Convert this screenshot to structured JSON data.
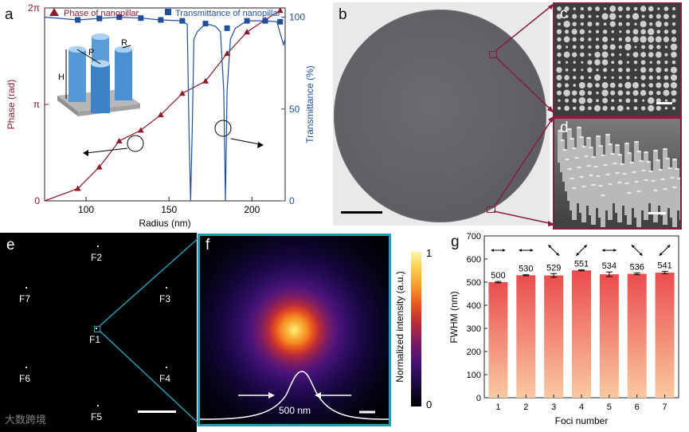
{
  "figure": {
    "panel_letters": {
      "a": "a",
      "b": "b",
      "c": "c",
      "d": "d",
      "e": "e",
      "f": "f",
      "g": "g"
    },
    "colors": {
      "phase": "#8b1a2b",
      "trans": "#1f4e9c",
      "panel_border": "#8b1a3f",
      "zoom_teal": "#2a9bb5"
    },
    "watermark": "大数跨境"
  },
  "chart_data": [
    {
      "id": "a",
      "type": "line",
      "title": "",
      "xlabel": "Radius (nm)",
      "ylabel_left": "Phase (rad)",
      "ylabel_right": "Transmittance (%)",
      "xlim": [
        75,
        220
      ],
      "xticks": [
        100,
        150,
        200
      ],
      "yticks_left": [
        "0",
        "π",
        "2π"
      ],
      "ylim_left": [
        0,
        6.2832
      ],
      "ylim_right": [
        0,
        105
      ],
      "yticks_right": [
        0,
        50,
        100
      ],
      "legend": [
        "Phase of nanopillar",
        "Transmittance of nanopillar"
      ],
      "inset_labels": {
        "P": "P",
        "R": "R",
        "H": "H"
      },
      "series": [
        {
          "name": "Phase of nanopillar",
          "markers_x": [
            95,
            108,
            120,
            133,
            145,
            158,
            172,
            185,
            197,
            208,
            217
          ],
          "markers_y": [
            0.4,
            1.1,
            1.95,
            2.3,
            2.8,
            3.5,
            3.9,
            4.8,
            5.5,
            5.9,
            6.2
          ]
        },
        {
          "name": "Transmittance of nanopillar",
          "markers_x": [
            95,
            108,
            120,
            133,
            145,
            158,
            172,
            185,
            197,
            208,
            217
          ],
          "markers_y": [
            98.5,
            99.3,
            100,
            99.5,
            98.5,
            98,
            96.5,
            94,
            98,
            98,
            97.5
          ]
        }
      ]
    },
    {
      "id": "g",
      "type": "bar",
      "title": "",
      "xlabel": "Foci number",
      "ylabel": "FWHM (nm)",
      "categories": [
        "1",
        "2",
        "3",
        "4",
        "5",
        "6",
        "7"
      ],
      "values": [
        500,
        530,
        529,
        551,
        534,
        536,
        541
      ],
      "errors": [
        3,
        2,
        8,
        2,
        10,
        4,
        5
      ],
      "ylim": [
        0,
        700
      ],
      "yticks": [
        0,
        100,
        200,
        300,
        400,
        500,
        600,
        700
      ]
    }
  ],
  "panel_e": {
    "foci": [
      "F1",
      "F2",
      "F3",
      "F4",
      "F5",
      "F6",
      "F7"
    ]
  },
  "panel_f": {
    "width_label": "500 nm",
    "colorbar_label": "Normalized intensity (a.u.)",
    "colorbar_ticks": [
      "1",
      "0"
    ]
  }
}
